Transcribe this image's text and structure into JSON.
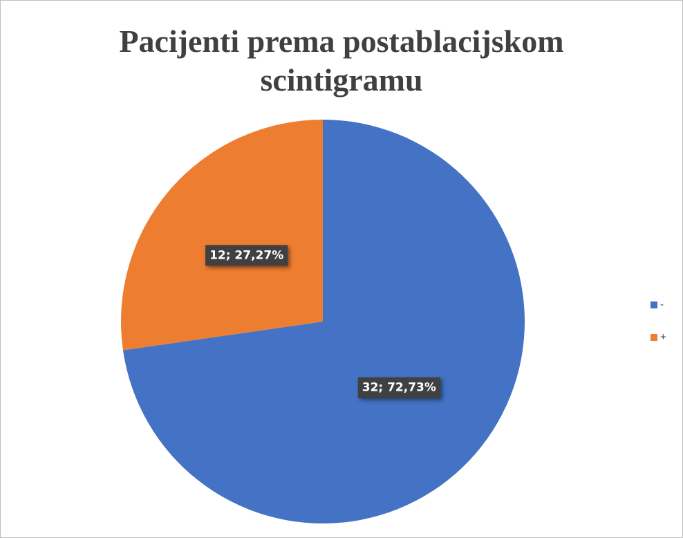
{
  "chart_data": {
    "type": "pie",
    "title": "Pacijenti prema postablacijskom scintigramu",
    "categories": [
      "-",
      "+"
    ],
    "series": [
      {
        "colors": [
          "#4472c4",
          "#ed7d31"
        ]
      }
    ],
    "values": [
      32,
      12
    ],
    "value_labels": [
      "32; 72,73%",
      "12; 27,27%"
    ],
    "legend": "right"
  }
}
